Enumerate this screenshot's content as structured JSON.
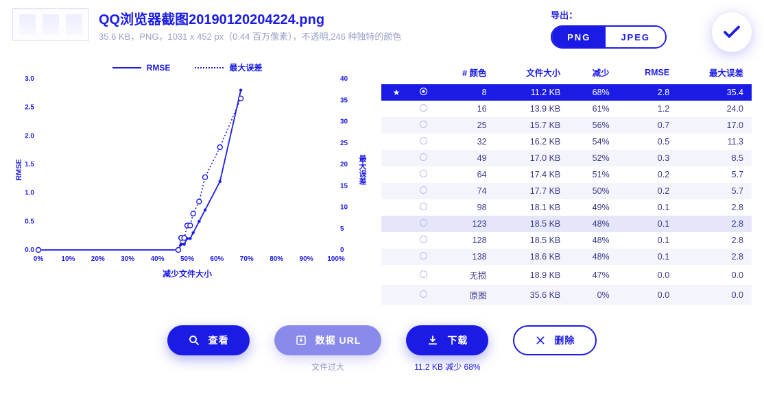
{
  "file": {
    "title": "QQ浏览器截图20190120204224.png",
    "meta": "35.6 KB，PNG，1031 x 452 px（0.44 百万像素），不透明,246 种独特的颜色"
  },
  "export": {
    "label": "导出：",
    "png": "PNG",
    "jpeg": "JPEG"
  },
  "chart": {
    "legend_rmse": "RMSE",
    "legend_max": "最大误差",
    "y_label_left": "RMSE",
    "y_label_right": "最大误差",
    "x_label": "减少文件大小",
    "x_ticks": [
      "0%",
      "10%",
      "20%",
      "30%",
      "40%",
      "50%",
      "60%",
      "70%",
      "80%",
      "90%",
      "100%"
    ],
    "y_left_ticks": [
      "0.0",
      "0.5",
      "1.0",
      "1.5",
      "2.0",
      "2.5",
      "3.0"
    ],
    "y_right_ticks": [
      "0",
      "5",
      "10",
      "15",
      "20",
      "25",
      "30",
      "35",
      "40"
    ],
    "x_domain": [
      0,
      100
    ],
    "y_left_domain": [
      0,
      3.0
    ],
    "y_right_domain": [
      0,
      40
    ],
    "series_rmse": [
      {
        "x": 0,
        "y": 0.0
      },
      {
        "x": 47,
        "y": 0.0
      },
      {
        "x": 48,
        "y": 0.1
      },
      {
        "x": 48,
        "y": 0.1
      },
      {
        "x": 48,
        "y": 0.1
      },
      {
        "x": 49,
        "y": 0.1
      },
      {
        "x": 50,
        "y": 0.2
      },
      {
        "x": 51,
        "y": 0.2
      },
      {
        "x": 52,
        "y": 0.3
      },
      {
        "x": 54,
        "y": 0.5
      },
      {
        "x": 56,
        "y": 0.7
      },
      {
        "x": 61,
        "y": 1.2
      },
      {
        "x": 68,
        "y": 2.8
      }
    ],
    "series_max": [
      {
        "x": 0,
        "y": 0.0
      },
      {
        "x": 47,
        "y": 0.0
      },
      {
        "x": 48,
        "y": 2.8
      },
      {
        "x": 48,
        "y": 2.8
      },
      {
        "x": 48,
        "y": 2.8
      },
      {
        "x": 49,
        "y": 2.8
      },
      {
        "x": 50,
        "y": 5.7
      },
      {
        "x": 51,
        "y": 5.7
      },
      {
        "x": 52,
        "y": 8.5
      },
      {
        "x": 54,
        "y": 11.3
      },
      {
        "x": 56,
        "y": 17.0
      },
      {
        "x": 61,
        "y": 24.0
      },
      {
        "x": 68,
        "y": 35.4
      }
    ],
    "colors": {
      "line": "#1b1be6",
      "grid": "#e8e8f8",
      "bg": "#ffffff"
    }
  },
  "table": {
    "headers": {
      "colors": "# 颜色",
      "size": "文件大小",
      "reduce": "减少",
      "rmse": "RMSE",
      "max": "最大误差"
    },
    "rows": [
      {
        "colors": "8",
        "size": "11.2 KB",
        "reduce": "68%",
        "rmse": "2.8",
        "max": "35.4",
        "selected": true
      },
      {
        "colors": "16",
        "size": "13.9 KB",
        "reduce": "61%",
        "rmse": "1.2",
        "max": "24.0"
      },
      {
        "colors": "25",
        "size": "15.7 KB",
        "reduce": "56%",
        "rmse": "0.7",
        "max": "17.0",
        "alt": true
      },
      {
        "colors": "32",
        "size": "16.2 KB",
        "reduce": "54%",
        "rmse": "0.5",
        "max": "11.3"
      },
      {
        "colors": "49",
        "size": "17.0 KB",
        "reduce": "52%",
        "rmse": "0.3",
        "max": "8.5",
        "alt": true
      },
      {
        "colors": "64",
        "size": "17.4 KB",
        "reduce": "51%",
        "rmse": "0.2",
        "max": "5.7"
      },
      {
        "colors": "74",
        "size": "17.7 KB",
        "reduce": "50%",
        "rmse": "0.2",
        "max": "5.7",
        "alt": true
      },
      {
        "colors": "98",
        "size": "18.1 KB",
        "reduce": "49%",
        "rmse": "0.1",
        "max": "2.8"
      },
      {
        "colors": "123",
        "size": "18.5 KB",
        "reduce": "48%",
        "rmse": "0.1",
        "max": "2.8",
        "hl": true
      },
      {
        "colors": "128",
        "size": "18.5 KB",
        "reduce": "48%",
        "rmse": "0.1",
        "max": "2.8"
      },
      {
        "colors": "138",
        "size": "18.6 KB",
        "reduce": "48%",
        "rmse": "0.1",
        "max": "2.8",
        "alt": true
      },
      {
        "colors": "无损",
        "size": "18.9 KB",
        "reduce": "47%",
        "rmse": "0.0",
        "max": "0.0"
      },
      {
        "colors": "原图",
        "size": "35.6 KB",
        "reduce": "0%",
        "rmse": "0.0",
        "max": "0.0",
        "alt": true
      }
    ]
  },
  "actions": {
    "view": "查看",
    "data_url": "数据 URL",
    "data_url_sub": "文件过大",
    "download": "下载",
    "download_sub": "11.2 KB   减少 68%",
    "delete": "删除"
  }
}
